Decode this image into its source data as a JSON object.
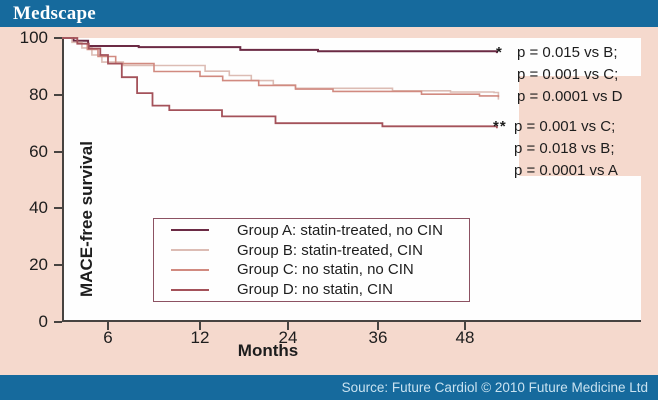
{
  "header": {
    "brand": "Medscape"
  },
  "footer": {
    "source_text": "Source: Future Cardiol © 2010 Future Medicine Ltd"
  },
  "colors": {
    "bar_blue": "#166a9d",
    "page_pink": "#f5d9cd",
    "axis": "#474340",
    "group_a": "#6b2a44",
    "group_b": "#dcbcb4",
    "group_c": "#d18a80",
    "group_d": "#a4525a"
  },
  "chart_data": {
    "type": "line",
    "subtype": "kaplan-meier-step",
    "ylabel": "MACE-free survival",
    "xlabel": "Months",
    "ylim": [
      0,
      100
    ],
    "yticks": [
      0,
      20,
      40,
      60,
      80,
      100
    ],
    "xticks": [
      6,
      12,
      24,
      36,
      48
    ],
    "axis_note": "x ticks evenly spaced despite unequal month intervals; grid off; legend boxed inside plot bottom-center",
    "series": [
      {
        "name": "Group A: statin-treated, no CIN",
        "color": "#6b2a44",
        "end_marker": "*",
        "points": [
          [
            0,
            100
          ],
          [
            1.5,
            99
          ],
          [
            3.4,
            97.2
          ],
          [
            8,
            96.8
          ],
          [
            17.5,
            95.8
          ],
          [
            28,
            95.3
          ],
          [
            52.4,
            94.7
          ]
        ]
      },
      {
        "name": "Group B: statin-treated, CIN",
        "color": "#dcbcb4",
        "end_marker": "",
        "points": [
          [
            0,
            100
          ],
          [
            1.3,
            98.5
          ],
          [
            2.6,
            96.5
          ],
          [
            3.9,
            94
          ],
          [
            5.2,
            91.5
          ],
          [
            7,
            90.3
          ],
          [
            12.7,
            88.3
          ],
          [
            16,
            86.8
          ],
          [
            19,
            85
          ],
          [
            22,
            83.5
          ],
          [
            25,
            82.3
          ],
          [
            38,
            81.4
          ],
          [
            46,
            81
          ],
          [
            52,
            80.8
          ],
          [
            52.6,
            78.3
          ]
        ]
      },
      {
        "name": "Group C: no statin, no CIN",
        "color": "#d18a80",
        "end_marker": "",
        "points": [
          [
            0,
            100
          ],
          [
            2,
            98
          ],
          [
            3.3,
            96
          ],
          [
            4.7,
            93.5
          ],
          [
            6.5,
            91
          ],
          [
            9,
            88.2
          ],
          [
            12,
            86.5
          ],
          [
            15.1,
            85
          ],
          [
            20,
            83.3
          ],
          [
            25,
            82
          ],
          [
            30,
            81.2
          ],
          [
            42,
            80.2
          ],
          [
            50,
            79.6
          ],
          [
            52.6,
            79.2
          ]
        ]
      },
      {
        "name": "Group D: no statin, CIN",
        "color": "#a4525a",
        "end_marker": "**",
        "points": [
          [
            0,
            100
          ],
          [
            2,
            98
          ],
          [
            3.5,
            96.3
          ],
          [
            5,
            94
          ],
          [
            6,
            91
          ],
          [
            6.9,
            86.2
          ],
          [
            7.9,
            80.6
          ],
          [
            8.9,
            76.2
          ],
          [
            10,
            74.6
          ],
          [
            15,
            72.4
          ],
          [
            22.3,
            70
          ],
          [
            36.6,
            68.9
          ],
          [
            52.4,
            68.2
          ]
        ]
      }
    ]
  },
  "annotations": [
    {
      "marker": "*",
      "lines": [
        "p = 0.015 vs B;",
        "p = 0.001 vs C;",
        "p = 0.0001 vs D"
      ]
    },
    {
      "marker": "**",
      "lines": [
        "p = 0.001 vs C;",
        "p = 0.018 vs B;",
        "p = 0.0001 vs A"
      ]
    }
  ]
}
